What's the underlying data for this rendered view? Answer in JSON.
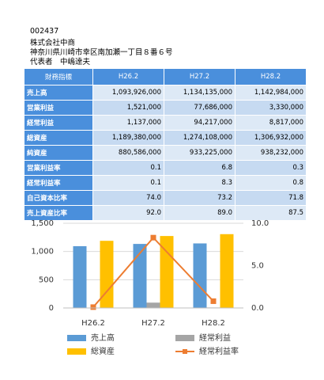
{
  "header": {
    "code": "002437",
    "company": "株式会社中商",
    "address": "神奈川県川崎市幸区南加瀬一丁目８番６号",
    "representative": "代表者　中嶋達夫"
  },
  "table": {
    "columns": [
      "財務指標",
      "H26.2",
      "H27.2",
      "H28.2"
    ],
    "rows": [
      [
        "売上高",
        "1,093,926,000",
        "1,134,135,000",
        "1,142,984,000"
      ],
      [
        "営業利益",
        "1,521,000",
        "77,686,000",
        "3,330,000"
      ],
      [
        "経常利益",
        "1,137,000",
        "94,217,000",
        "8,817,000"
      ],
      [
        "総資産",
        "1,189,380,000",
        "1,274,108,000",
        "1,306,932,000"
      ],
      [
        "純資産",
        "880,586,000",
        "933,225,000",
        "938,232,000"
      ],
      [
        "営業利益率",
        "0.1",
        "6.8",
        "0.3"
      ],
      [
        "経常利益率",
        "0.1",
        "8.3",
        "0.8"
      ],
      [
        "自己資本比率",
        "74.0",
        "73.2",
        "71.8"
      ],
      [
        "売上資産比率",
        "92.0",
        "89.0",
        "87.5"
      ]
    ]
  },
  "chart_data": {
    "type": "bar",
    "categories": [
      "H26.2",
      "H27.2",
      "H28.2"
    ],
    "series": [
      {
        "name": "売上高",
        "color": "#5b9bd5",
        "values": [
          1094,
          1134,
          1143
        ]
      },
      {
        "name": "経常利益",
        "color": "#a5a5a5",
        "values": [
          1.1,
          94.2,
          8.8
        ]
      },
      {
        "name": "総資産",
        "color": "#ffc000",
        "values": [
          1189,
          1274,
          1307
        ]
      },
      {
        "name": "経常利益率",
        "color": "#ed7d31",
        "type": "line",
        "axis": "y2",
        "values": [
          0.1,
          8.3,
          0.8
        ]
      }
    ],
    "ylim": [
      0,
      1500
    ],
    "yticks": [
      0,
      500,
      {
        "value": 1000,
        "label": "1,000"
      },
      {
        "value": 1500,
        "label": "1,500"
      }
    ],
    "y2lim": [
      0,
      10
    ],
    "y2ticks": [
      {
        "value": 0,
        "label": "0.0"
      },
      {
        "value": 5,
        "label": "5.0"
      },
      {
        "value": 10,
        "label": "10.0"
      }
    ],
    "grid": true
  }
}
